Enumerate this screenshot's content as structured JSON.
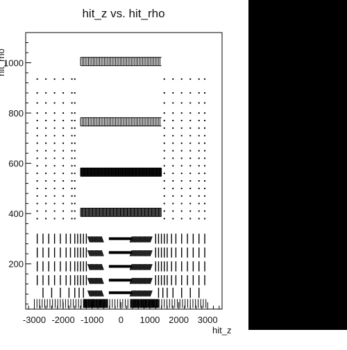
{
  "chart_data": {
    "type": "scatter",
    "title": "hit_z vs. hit_rho",
    "xlabel": "hit_z",
    "ylabel": "hit_rho",
    "xlim": [
      -3300,
      3500
    ],
    "ylim": [
      20,
      1120
    ],
    "x_ticks": [
      -3000,
      -2000,
      -1000,
      0,
      1000,
      2000,
      3000
    ],
    "y_ticks": [
      200,
      400,
      600,
      800,
      1000
    ],
    "grid": false,
    "barrel_bands": [
      {
        "rho": 1005,
        "z_range": [
          -1400,
          1400
        ],
        "height": 14,
        "spacing": 55
      },
      {
        "rho": 765,
        "z_range": [
          -1400,
          1400
        ],
        "height": 14,
        "spacing": 55
      },
      {
        "rho": 565,
        "z_range": [
          -1400,
          1400
        ],
        "height": 14,
        "spacing": 20
      },
      {
        "rho": 405,
        "z_range": [
          -1400,
          1400
        ],
        "height": 14,
        "spacing": 30
      }
    ],
    "outer_endcap_dots": {
      "z_left": [
        -2900,
        -2600,
        -2300,
        -2000,
        -1700,
        -1600
      ],
      "z_right": [
        1500,
        1800,
        2100,
        2400,
        2700,
        2900
      ],
      "rho": [
        380,
        410,
        440,
        470,
        500,
        530,
        560,
        590,
        620,
        650,
        680,
        710,
        740,
        770,
        800,
        840,
        880,
        935
      ]
    },
    "inner_layers": [
      {
        "rho_range": [
          280,
          320
        ],
        "z_lines": [
          -2900,
          -2700,
          -2500,
          -2300,
          -2100,
          -1900,
          -1750,
          -1600,
          -1500,
          -1400,
          -1300,
          -1200,
          1200,
          1300,
          1400,
          1500,
          1600,
          1750,
          1900,
          2100,
          2300,
          2500,
          2700,
          2900
        ],
        "bar_rho": 300
      },
      {
        "rho_range": [
          225,
          265
        ],
        "z_lines": [
          -2900,
          -2700,
          -2500,
          -2300,
          -2100,
          -1900,
          -1750,
          -1600,
          -1500,
          -1400,
          -1300,
          -1200,
          1200,
          1300,
          1400,
          1500,
          1600,
          1750,
          1900,
          2100,
          2300,
          2500,
          2700,
          2900
        ],
        "bar_rho": 245
      },
      {
        "rho_range": [
          170,
          210
        ],
        "z_lines": [
          -2900,
          -2700,
          -2500,
          -2300,
          -2100,
          -1900,
          -1750,
          -1600,
          -1500,
          -1400,
          -1300,
          -1200,
          1200,
          1300,
          1400,
          1500,
          1600,
          1750,
          1900,
          2100,
          2300,
          2500,
          2700,
          2900
        ],
        "bar_rho": 190
      },
      {
        "rho_range": [
          115,
          155
        ],
        "z_lines": [
          -2900,
          -2700,
          -2500,
          -2300,
          -2100,
          -1900,
          -1750,
          -1600,
          -1500,
          -1400,
          -1300,
          -1200,
          1200,
          1300,
          1400,
          1500,
          1600,
          1750,
          1900,
          2100,
          2300,
          2500,
          2700,
          2900
        ],
        "bar_rho": 135
      },
      {
        "rho_range": [
          65,
          105
        ],
        "z_lines": [
          -2700,
          -2400,
          -2100,
          -1800,
          -1600,
          -1450,
          -1300,
          1300,
          1450,
          1600,
          1800,
          2100,
          2400,
          2700
        ],
        "bar_rho": 85
      }
    ],
    "bottom_fringe": {
      "rho_range": [
        25,
        60
      ],
      "z_range": [
        -3000,
        3000
      ]
    }
  }
}
